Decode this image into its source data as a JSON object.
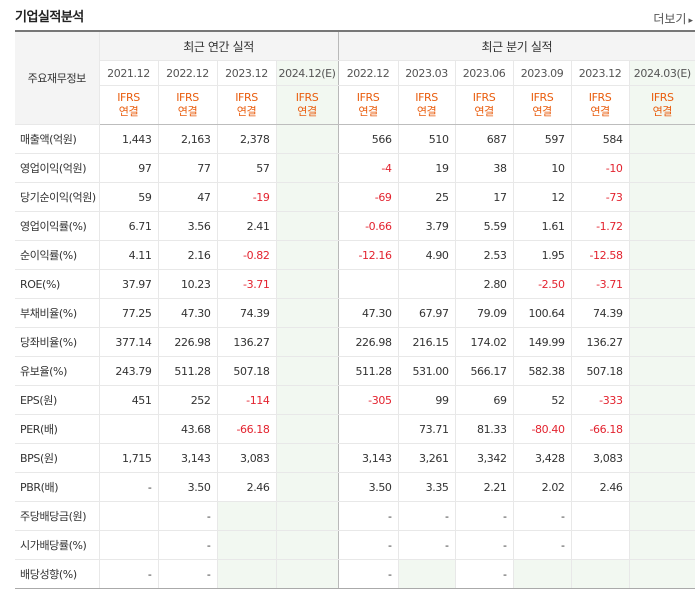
{
  "header": {
    "title": "기업실적분석",
    "more_label": "더보기",
    "more_arrow": "▸"
  },
  "table": {
    "row_header": "주요재무정보",
    "annual_title": "최근 연간 실적",
    "quarterly_title": "최근 분기 실적",
    "annual_periods": [
      "2021.12",
      "2022.12",
      "2023.12",
      "2024.12(E)"
    ],
    "quarterly_periods": [
      "2022.12",
      "2023.03",
      "2023.06",
      "2023.09",
      "2023.12",
      "2024.03(E)"
    ],
    "basis_line1": "IFRS",
    "basis_line2": "연결",
    "rows": [
      {
        "label": "매출액(억원)",
        "values": [
          "1,443",
          "2,163",
          "2,378",
          "",
          "566",
          "510",
          "687",
          "597",
          "584",
          ""
        ]
      },
      {
        "label": "영업이익(억원)",
        "values": [
          "97",
          "77",
          "57",
          "",
          "-4",
          "19",
          "38",
          "10",
          "-10",
          ""
        ]
      },
      {
        "label": "당기순이익(억원)",
        "values": [
          "59",
          "47",
          "-19",
          "",
          "-69",
          "25",
          "17",
          "12",
          "-73",
          ""
        ]
      },
      {
        "label": "영업이익률(%)",
        "values": [
          "6.71",
          "3.56",
          "2.41",
          "",
          "-0.66",
          "3.79",
          "5.59",
          "1.61",
          "-1.72",
          ""
        ]
      },
      {
        "label": "순이익률(%)",
        "values": [
          "4.11",
          "2.16",
          "-0.82",
          "",
          "-12.16",
          "4.90",
          "2.53",
          "1.95",
          "-12.58",
          ""
        ]
      },
      {
        "label": "ROE(%)",
        "values": [
          "37.97",
          "10.23",
          "-3.71",
          "",
          "",
          "",
          "2.80",
          "-2.50",
          "-3.71",
          ""
        ]
      },
      {
        "label": "부채비율(%)",
        "values": [
          "77.25",
          "47.30",
          "74.39",
          "",
          "47.30",
          "67.97",
          "79.09",
          "100.64",
          "74.39",
          ""
        ]
      },
      {
        "label": "당좌비율(%)",
        "values": [
          "377.14",
          "226.98",
          "136.27",
          "",
          "226.98",
          "216.15",
          "174.02",
          "149.99",
          "136.27",
          ""
        ]
      },
      {
        "label": "유보율(%)",
        "values": [
          "243.79",
          "511.28",
          "507.18",
          "",
          "511.28",
          "531.00",
          "566.17",
          "582.38",
          "507.18",
          ""
        ]
      },
      {
        "label": "EPS(원)",
        "values": [
          "451",
          "252",
          "-114",
          "",
          "-305",
          "99",
          "69",
          "52",
          "-333",
          ""
        ]
      },
      {
        "label": "PER(배)",
        "values": [
          "",
          "43.68",
          "-66.18",
          "",
          "",
          "73.71",
          "81.33",
          "-80.40",
          "-66.18",
          ""
        ]
      },
      {
        "label": "BPS(원)",
        "values": [
          "1,715",
          "3,143",
          "3,083",
          "",
          "3,143",
          "3,261",
          "3,342",
          "3,428",
          "3,083",
          ""
        ]
      },
      {
        "label": "PBR(배)",
        "values": [
          "-",
          "3.50",
          "2.46",
          "",
          "3.50",
          "3.35",
          "2.21",
          "2.02",
          "2.46",
          ""
        ]
      },
      {
        "label": "주당배당금(원)",
        "values": [
          "",
          "-",
          "",
          "",
          "-",
          "-",
          "-",
          "-",
          "",
          ""
        ]
      },
      {
        "label": "시가배당률(%)",
        "values": [
          "",
          "-",
          "",
          "",
          "-",
          "-",
          "-",
          "-",
          "",
          ""
        ]
      },
      {
        "label": "배당성향(%)",
        "values": [
          "-",
          "-",
          "",
          "",
          "-",
          "",
          "-",
          "",
          "",
          ""
        ]
      }
    ],
    "shaded_cells": [
      [
        13,
        2
      ],
      [
        13,
        9
      ],
      [
        14,
        2
      ],
      [
        14,
        9
      ],
      [
        15,
        2
      ],
      [
        15,
        5
      ],
      [
        15,
        7
      ],
      [
        15,
        8
      ],
      [
        15,
        9
      ]
    ],
    "group_breaks": [
      3,
      6,
      9,
      13
    ]
  },
  "colors": {
    "negative": "#e3232f",
    "ifrs": "#e95d0e",
    "estimate_bg": "#f2f8f1",
    "header_bg": "#f4f4f4"
  }
}
